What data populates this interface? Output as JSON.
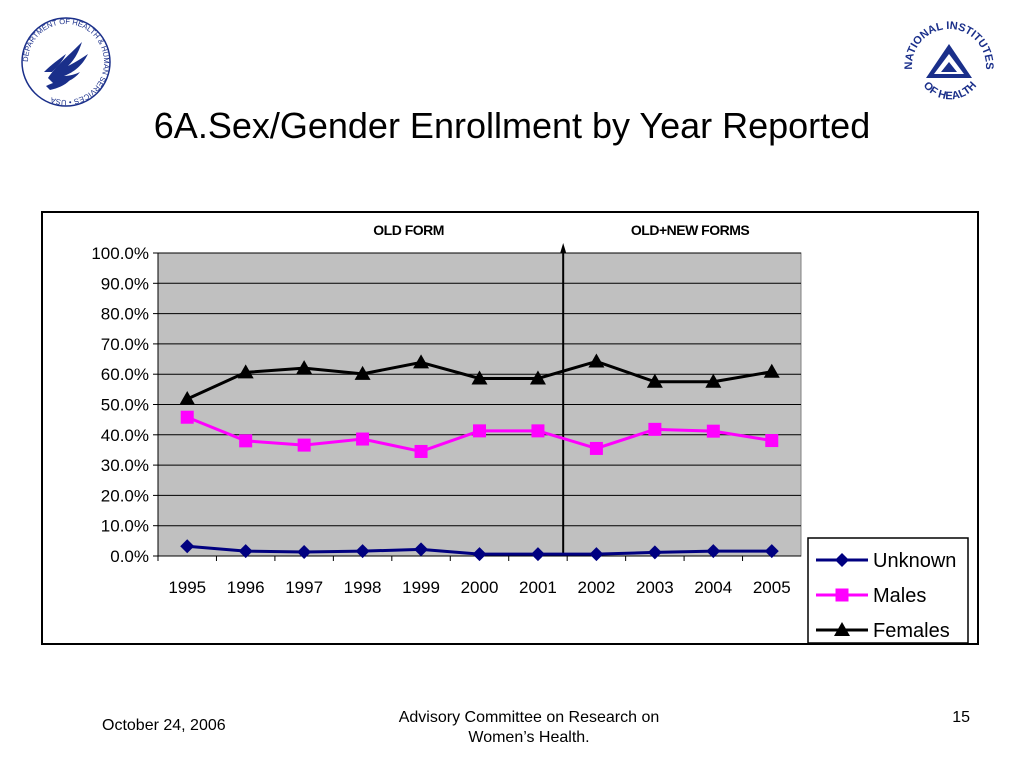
{
  "slide": {
    "title": "6A.Sex/Gender Enrollment by Year Reported"
  },
  "logos": {
    "left_text": "DEPARTMENT OF HEALTH & HUMAN SERVICES • USA",
    "right_text_top": "NATIONAL INSTITUTES",
    "right_text_bottom": "OF HEALTH"
  },
  "footer": {
    "date": "October 24, 2006",
    "center_line1": "Advisory Committee on Research on",
    "center_line2": "Women’s Health.",
    "page": "15"
  },
  "chart_data": {
    "type": "line",
    "title": "",
    "section_labels": [
      "OLD FORM",
      "OLD+NEW FORMS"
    ],
    "divider_after_category": "2001",
    "categories": [
      "1995",
      "1996",
      "1997",
      "1998",
      "1999",
      "2000",
      "2001",
      "2002",
      "2003",
      "2004",
      "2005"
    ],
    "ylim": [
      0,
      100
    ],
    "yticks": [
      0,
      10,
      20,
      30,
      40,
      50,
      60,
      70,
      80,
      90,
      100
    ],
    "ytick_labels": [
      "0.0%",
      "10.0%",
      "20.0%",
      "30.0%",
      "40.0%",
      "50.0%",
      "60.0%",
      "70.0%",
      "80.0%",
      "90.0%",
      "100.0%"
    ],
    "grid": true,
    "plot_background": "#c0c0c0",
    "legend_position": "bottom-right",
    "series": [
      {
        "name": "Unknown",
        "color": "#000080",
        "marker": "diamond",
        "values": [
          3.2,
          1.6,
          1.3,
          1.6,
          2.2,
          0.6,
          0.6,
          0.6,
          1.2,
          1.6,
          1.6
        ]
      },
      {
        "name": "Males",
        "color": "#ff00ff",
        "marker": "square",
        "values": [
          45.8,
          38.0,
          36.6,
          38.6,
          34.5,
          41.3,
          41.3,
          35.5,
          41.8,
          41.2,
          38.1
        ]
      },
      {
        "name": "Females",
        "color": "#000000",
        "marker": "triangle",
        "values": [
          51.8,
          60.6,
          62.0,
          60.1,
          63.9,
          58.6,
          58.6,
          64.2,
          57.5,
          57.5,
          60.8
        ]
      }
    ]
  }
}
